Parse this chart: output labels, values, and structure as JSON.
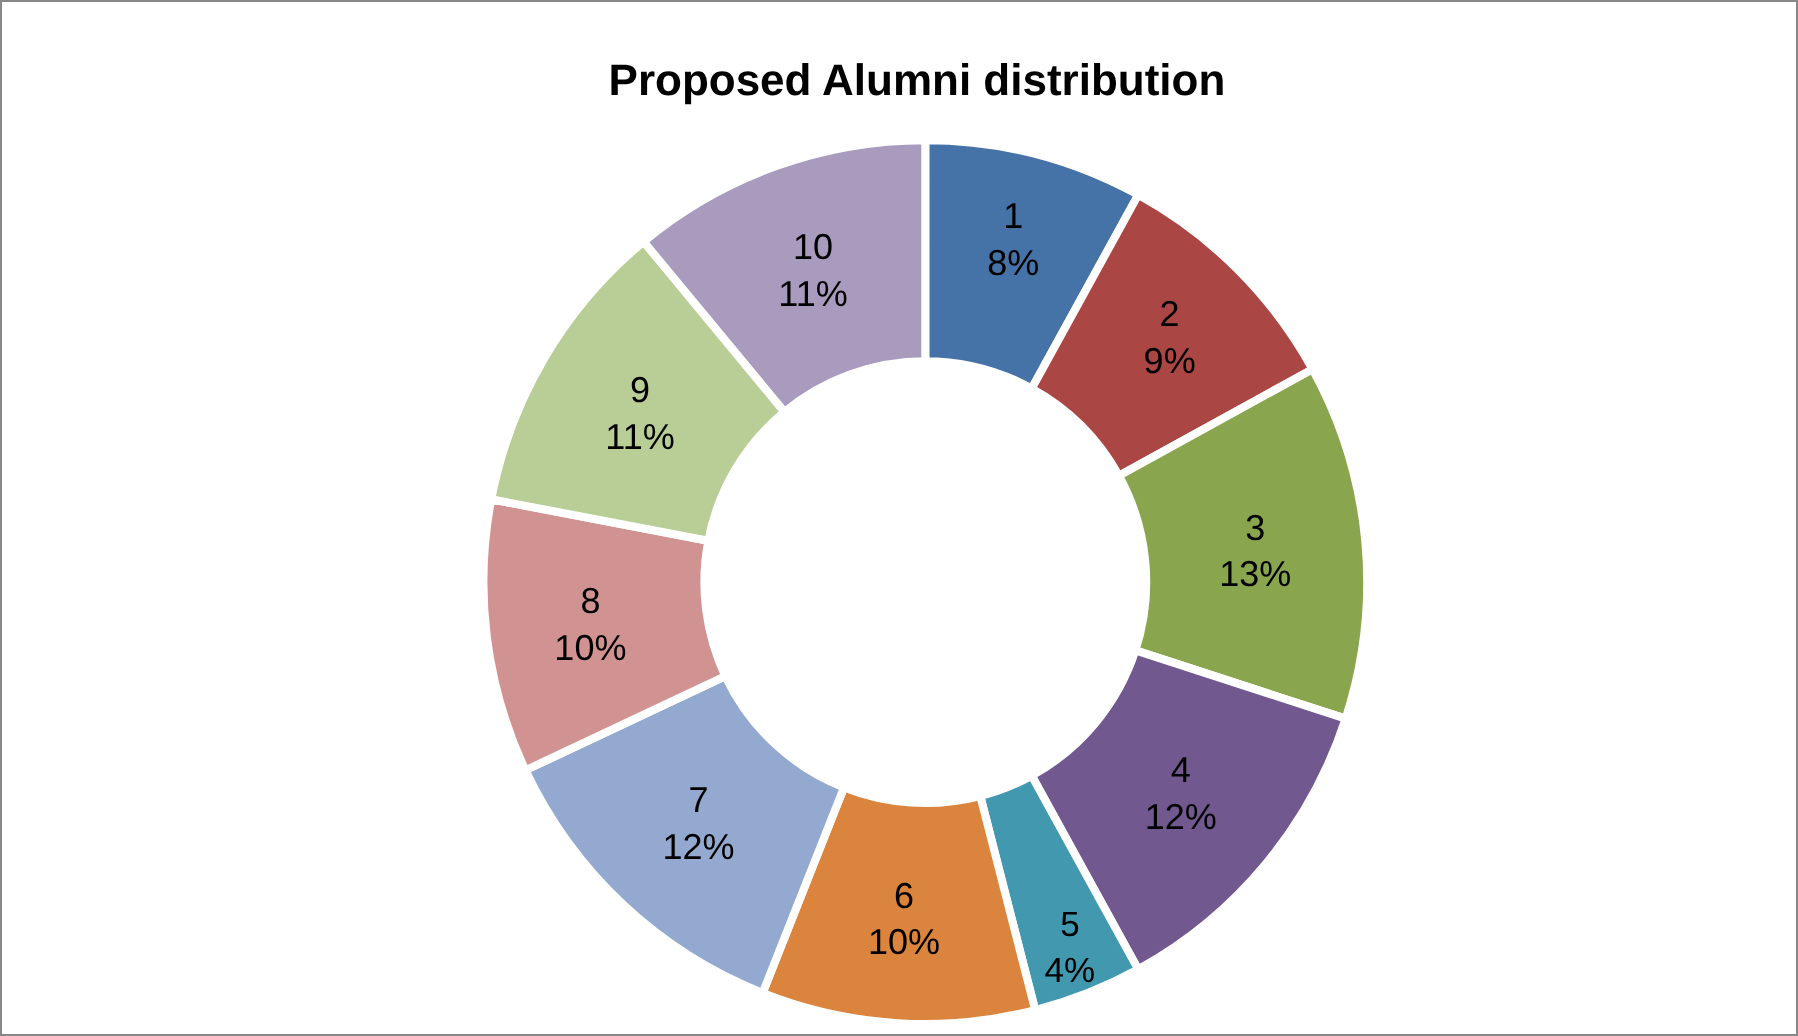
{
  "chart_data": {
    "type": "donut",
    "title": "Proposed Alumni distribution",
    "categories": [
      "1",
      "2",
      "3",
      "4",
      "5",
      "6",
      "7",
      "8",
      "9",
      "10"
    ],
    "values": [
      8,
      9,
      13,
      12,
      4,
      10,
      12,
      10,
      11,
      11
    ],
    "value_labels": [
      "8%",
      "9%",
      "13%",
      "12%",
      "4%",
      "10%",
      "12%",
      "10%",
      "11%",
      "11%"
    ],
    "colors": [
      "#4572a7",
      "#aa4643",
      "#89a54e",
      "#71588f",
      "#4198af",
      "#db843d",
      "#93a9cf",
      "#d19392",
      "#b9cd96",
      "#a99bbd"
    ],
    "legend": false
  }
}
